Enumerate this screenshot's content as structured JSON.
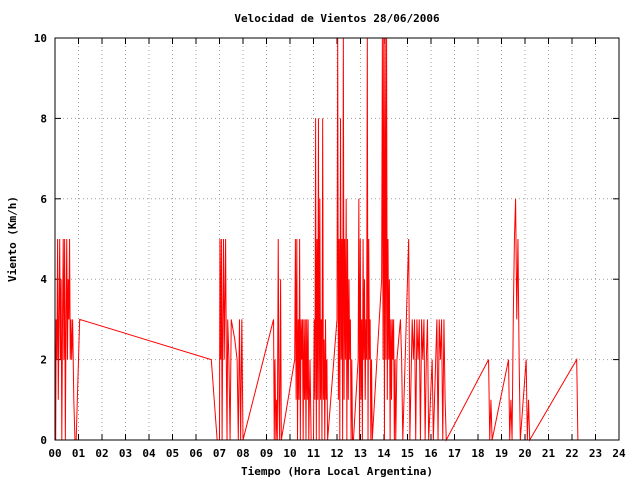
{
  "chart_data": {
    "type": "line",
    "title": "Velocidad de Vientos 28/06/2006",
    "xlabel": "Tiempo (Hora Local Argentina)",
    "ylabel": "Viento (Km/h)",
    "xlim": [
      0,
      24
    ],
    "ylim": [
      0,
      10
    ],
    "x_tick_labels": [
      "00",
      "01",
      "02",
      "03",
      "04",
      "05",
      "06",
      "07",
      "08",
      "09",
      "10",
      "11",
      "12",
      "13",
      "14",
      "15",
      "16",
      "17",
      "18",
      "19",
      "20",
      "21",
      "22",
      "23",
      "24"
    ],
    "y_tick_labels": [
      "0",
      "2",
      "4",
      "6",
      "8",
      "10"
    ],
    "grid": true,
    "series": [
      {
        "color": "#ff0000",
        "points": [
          [
            0.0,
            2.5
          ],
          [
            0.03,
            0
          ],
          [
            0.05,
            3
          ],
          [
            0.08,
            2
          ],
          [
            0.11,
            5
          ],
          [
            0.14,
            1
          ],
          [
            0.17,
            3
          ],
          [
            0.2,
            5
          ],
          [
            0.23,
            2
          ],
          [
            0.26,
            4
          ],
          [
            0.29,
            0
          ],
          [
            0.32,
            3
          ],
          [
            0.35,
            5
          ],
          [
            0.38,
            2
          ],
          [
            0.41,
            5
          ],
          [
            0.44,
            0
          ],
          [
            0.47,
            3
          ],
          [
            0.5,
            5
          ],
          [
            0.53,
            2
          ],
          [
            0.56,
            4
          ],
          [
            0.59,
            3
          ],
          [
            0.62,
            5
          ],
          [
            0.65,
            2
          ],
          [
            0.68,
            3
          ],
          [
            0.71,
            2
          ],
          [
            0.75,
            3
          ],
          [
            0.8,
            1
          ],
          [
            0.85,
            0
          ],
          [
            0.9,
            0
          ],
          [
            1.05,
            3
          ],
          [
            6.65,
            2
          ],
          [
            6.9,
            0
          ],
          [
            7.0,
            0
          ],
          [
            7.02,
            5
          ],
          [
            7.05,
            2
          ],
          [
            7.08,
            5
          ],
          [
            7.11,
            0
          ],
          [
            7.14,
            3
          ],
          [
            7.17,
            5
          ],
          [
            7.2,
            2
          ],
          [
            7.23,
            3.5
          ],
          [
            7.26,
            5
          ],
          [
            7.29,
            2
          ],
          [
            7.32,
            0
          ],
          [
            7.35,
            3
          ],
          [
            7.4,
            2
          ],
          [
            7.45,
            0
          ],
          [
            7.5,
            3
          ],
          [
            7.65,
            2.5
          ],
          [
            7.75,
            2
          ],
          [
            7.8,
            0
          ],
          [
            7.85,
            3
          ],
          [
            7.9,
            0
          ],
          [
            7.95,
            3
          ],
          [
            8.0,
            0
          ],
          [
            9.3,
            3
          ],
          [
            9.33,
            0
          ],
          [
            9.36,
            2
          ],
          [
            9.4,
            0
          ],
          [
            9.43,
            1
          ],
          [
            9.46,
            0
          ],
          [
            9.5,
            5
          ],
          [
            9.53,
            1
          ],
          [
            9.56,
            0
          ],
          [
            9.6,
            4
          ],
          [
            9.63,
            0
          ],
          [
            10.2,
            2
          ],
          [
            10.23,
            5
          ],
          [
            10.26,
            1
          ],
          [
            10.29,
            5
          ],
          [
            10.32,
            0
          ],
          [
            10.35,
            3
          ],
          [
            10.38,
            1
          ],
          [
            10.41,
            5
          ],
          [
            10.44,
            0
          ],
          [
            10.47,
            3
          ],
          [
            10.5,
            2
          ],
          [
            10.53,
            3
          ],
          [
            10.56,
            0
          ],
          [
            10.59,
            3
          ],
          [
            10.62,
            1
          ],
          [
            10.65,
            3
          ],
          [
            10.68,
            0
          ],
          [
            10.71,
            3
          ],
          [
            10.74,
            1
          ],
          [
            10.77,
            3
          ],
          [
            10.8,
            0
          ],
          [
            10.85,
            2
          ],
          [
            10.9,
            0
          ],
          [
            10.95,
            0
          ],
          [
            11.0,
            0
          ],
          [
            11.03,
            3
          ],
          [
            11.06,
            1
          ],
          [
            11.09,
            8
          ],
          [
            11.12,
            0
          ],
          [
            11.15,
            5
          ],
          [
            11.18,
            1
          ],
          [
            11.21,
            8
          ],
          [
            11.24,
            0
          ],
          [
            11.27,
            6
          ],
          [
            11.3,
            1
          ],
          [
            11.33,
            3
          ],
          [
            11.36,
            0
          ],
          [
            11.39,
            8
          ],
          [
            11.42,
            1
          ],
          [
            11.45,
            2.5
          ],
          [
            11.48,
            0
          ],
          [
            11.51,
            3
          ],
          [
            11.54,
            1
          ],
          [
            11.57,
            2
          ],
          [
            11.6,
            0
          ],
          [
            12.0,
            3
          ],
          [
            12.03,
            10
          ],
          [
            12.06,
            1
          ],
          [
            12.09,
            5
          ],
          [
            12.12,
            0
          ],
          [
            12.15,
            8
          ],
          [
            12.18,
            2
          ],
          [
            12.21,
            5
          ],
          [
            12.24,
            0
          ],
          [
            12.27,
            10
          ],
          [
            12.3,
            1
          ],
          [
            12.33,
            5
          ],
          [
            12.36,
            2
          ],
          [
            12.39,
            6
          ],
          [
            12.42,
            0
          ],
          [
            12.45,
            5
          ],
          [
            12.48,
            1
          ],
          [
            12.51,
            4
          ],
          [
            12.54,
            2
          ],
          [
            12.57,
            3
          ],
          [
            12.6,
            0
          ],
          [
            12.63,
            2
          ],
          [
            12.66,
            0
          ],
          [
            12.7,
            0
          ],
          [
            12.9,
            2
          ],
          [
            12.93,
            6
          ],
          [
            12.96,
            0
          ],
          [
            12.99,
            5
          ],
          [
            13.02,
            1
          ],
          [
            13.05,
            3
          ],
          [
            13.08,
            0
          ],
          [
            13.11,
            5
          ],
          [
            13.14,
            2
          ],
          [
            13.17,
            4
          ],
          [
            13.2,
            1
          ],
          [
            13.23,
            3
          ],
          [
            13.26,
            2
          ],
          [
            13.29,
            10
          ],
          [
            13.32,
            0
          ],
          [
            13.35,
            5
          ],
          [
            13.38,
            2
          ],
          [
            13.41,
            3
          ],
          [
            13.44,
            0
          ],
          [
            13.47,
            2
          ],
          [
            13.5,
            0
          ],
          [
            13.7,
            2
          ],
          [
            13.9,
            4
          ],
          [
            13.93,
            10
          ],
          [
            13.96,
            2
          ],
          [
            13.99,
            10
          ],
          [
            14.02,
            0
          ],
          [
            14.05,
            10
          ],
          [
            14.08,
            2
          ],
          [
            14.11,
            10
          ],
          [
            14.14,
            1
          ],
          [
            14.17,
            5
          ],
          [
            14.2,
            2
          ],
          [
            14.23,
            4
          ],
          [
            14.26,
            0
          ],
          [
            14.29,
            3
          ],
          [
            14.32,
            1
          ],
          [
            14.35,
            3
          ],
          [
            14.38,
            2
          ],
          [
            14.41,
            3
          ],
          [
            14.44,
            0
          ],
          [
            14.47,
            2
          ],
          [
            14.5,
            0
          ],
          [
            14.55,
            2
          ],
          [
            14.7,
            3
          ],
          [
            14.75,
            2
          ],
          [
            14.8,
            0
          ],
          [
            15.05,
            5
          ],
          [
            15.1,
            0
          ],
          [
            15.2,
            3
          ],
          [
            15.25,
            2
          ],
          [
            15.3,
            3
          ],
          [
            15.35,
            0
          ],
          [
            15.4,
            3
          ],
          [
            15.45,
            2
          ],
          [
            15.5,
            3
          ],
          [
            15.55,
            0
          ],
          [
            15.6,
            3
          ],
          [
            15.65,
            2
          ],
          [
            15.7,
            3
          ],
          [
            15.75,
            0
          ],
          [
            15.8,
            2
          ],
          [
            15.85,
            3
          ],
          [
            15.9,
            0
          ],
          [
            16.05,
            2
          ],
          [
            16.1,
            0
          ],
          [
            16.2,
            2
          ],
          [
            16.25,
            3
          ],
          [
            16.3,
            0
          ],
          [
            16.35,
            3
          ],
          [
            16.4,
            2
          ],
          [
            16.45,
            3
          ],
          [
            16.5,
            0
          ],
          [
            16.55,
            3
          ],
          [
            16.6,
            1
          ],
          [
            16.65,
            0
          ],
          [
            18.45,
            2
          ],
          [
            18.5,
            0
          ],
          [
            18.55,
            1
          ],
          [
            18.6,
            0
          ],
          [
            19.3,
            2
          ],
          [
            19.35,
            0
          ],
          [
            19.4,
            1
          ],
          [
            19.45,
            0
          ],
          [
            19.5,
            3
          ],
          [
            19.55,
            5
          ],
          [
            19.6,
            6
          ],
          [
            19.65,
            3
          ],
          [
            19.7,
            5
          ],
          [
            19.75,
            2
          ],
          [
            19.8,
            0
          ],
          [
            20.05,
            2
          ],
          [
            20.1,
            0
          ],
          [
            20.15,
            1
          ],
          [
            20.2,
            0
          ],
          [
            22.2,
            2
          ],
          [
            22.25,
            0
          ]
        ]
      }
    ]
  }
}
